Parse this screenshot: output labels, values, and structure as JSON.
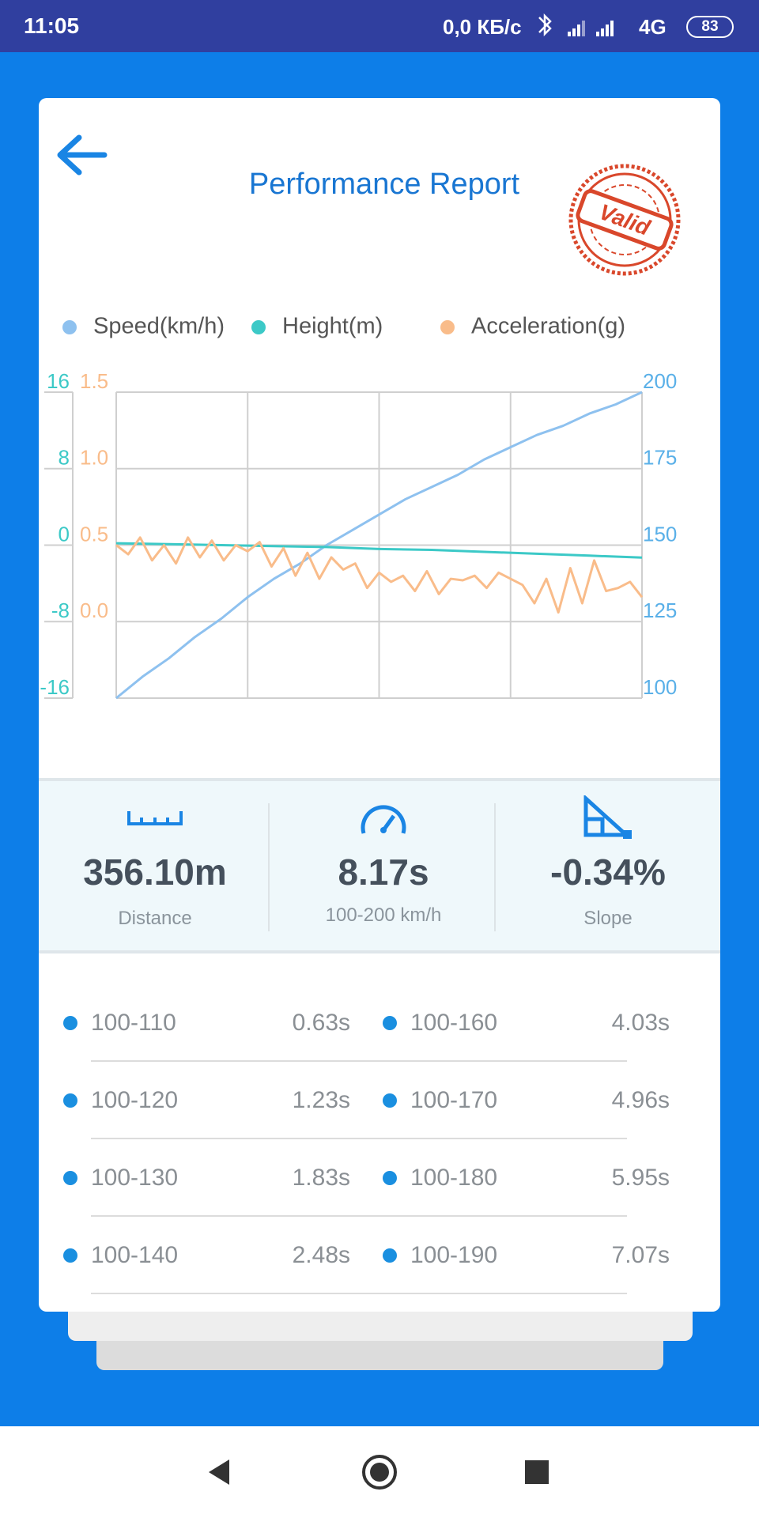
{
  "status_bar": {
    "time": "11:05",
    "net_speed": "0,0 КБ/с",
    "network": "4G",
    "battery": "83"
  },
  "header": {
    "title": "Performance Report",
    "stamp": "Valid"
  },
  "chart_data": {
    "type": "line",
    "grid": true,
    "series": [
      {
        "name": "Speed(km/h)",
        "color": "#8ec1ef",
        "axis": "y2",
        "values": [
          100,
          107,
          113,
          120,
          126,
          133,
          139,
          144,
          150,
          155,
          160,
          165,
          169,
          173,
          178,
          182,
          186,
          189,
          193,
          196,
          200
        ]
      },
      {
        "name": "Height(m)",
        "color": "#3cc9c7",
        "values": [
          0.2,
          0.1,
          0,
          -0.1,
          -0.2,
          -0.4,
          -0.5,
          -0.7,
          -0.9,
          -1.1,
          -1.3
        ]
      },
      {
        "name": "Acceleration(g)",
        "color": "#f9bc8a",
        "axis": "y3",
        "values": [
          0.5,
          0.44,
          0.55,
          0.4,
          0.5,
          0.38,
          0.55,
          0.42,
          0.53,
          0.4,
          0.5,
          0.46,
          0.52,
          0.36,
          0.48,
          0.3,
          0.45,
          0.28,
          0.42,
          0.34,
          0.38,
          0.22,
          0.32,
          0.26,
          0.3,
          0.2,
          0.33,
          0.18,
          0.28,
          0.27,
          0.3,
          0.22,
          0.32,
          0.28,
          0.24,
          0.12,
          0.28,
          0.06,
          0.35,
          0.12,
          0.4,
          0.2,
          0.22,
          0.26,
          0.16
        ]
      }
    ],
    "ylim": [
      -16,
      16
    ],
    "yticks": [
      -16,
      -8,
      0,
      8,
      16
    ],
    "y2lim": [
      100,
      200
    ],
    "y2ticks": [
      100,
      125,
      150,
      175,
      200
    ],
    "y3lim": [
      -0.5,
      1.5
    ],
    "y3ticks": [
      {
        "value": 0,
        "label": "0.0"
      },
      0.5,
      {
        "value": 1,
        "label": "1.0"
      },
      1.5
    ]
  },
  "stats": [
    {
      "value": "356.10m",
      "label": "Distance"
    },
    {
      "value": "8.17s",
      "label": "100-200 km/h"
    },
    {
      "value": "-0.34%",
      "label": "Slope"
    }
  ],
  "splits": [
    [
      "100-110",
      "0.63s",
      "100-160",
      "4.03s"
    ],
    [
      "100-120",
      "1.23s",
      "100-170",
      "4.96s"
    ],
    [
      "100-130",
      "1.83s",
      "100-180",
      "5.95s"
    ],
    [
      "100-140",
      "2.48s",
      "100-190",
      "7.07s"
    ]
  ]
}
